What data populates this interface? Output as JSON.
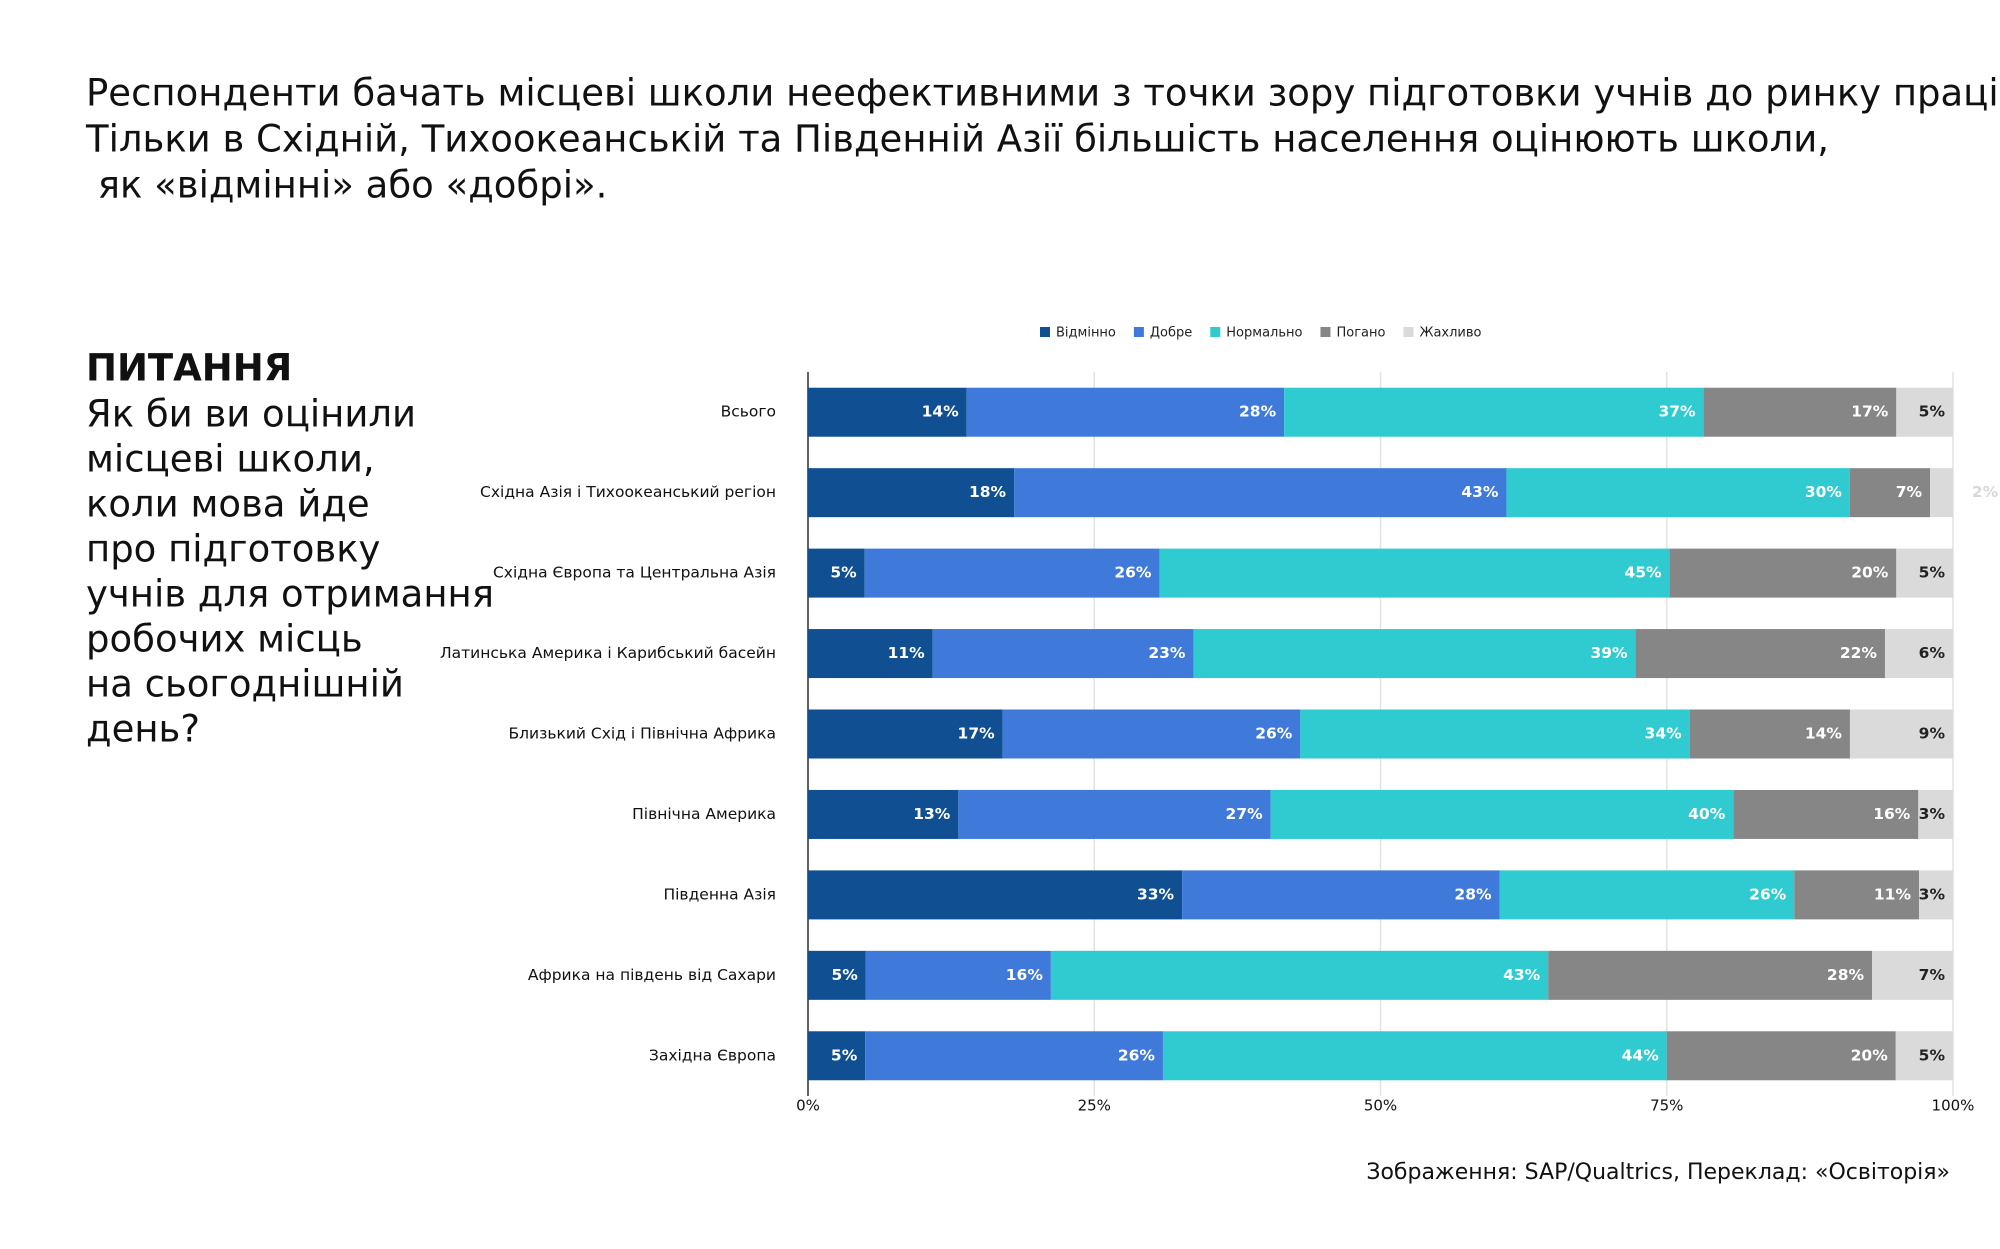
{
  "header": {
    "lines": [
      "Респонденти бачать місцеві школи неефективними з точки зору підготовки учнів до ринку праці.",
      "Тільки в Східній, Тихоокеанській та Південній Азії більшість населення оцінюють школи,",
      " як «відмінні» або «добрі»."
    ]
  },
  "question": {
    "heading": "ПИТАННЯ",
    "lines": [
      "Як би ви оцінили",
      "місцеві школи,",
      "коли мова йде",
      "про підготовку",
      "учнів для отримання",
      "робочих місць",
      "на сьогоднішній",
      "день?"
    ]
  },
  "source": "Зображення: SAP/Qualtrics, Переклад: «Освіторія»",
  "chart_data": {
    "type": "bar",
    "orientation": "horizontal",
    "stacked": "percent",
    "categories": [
      "Всього",
      "Східна Азія і Тихоокеанський регіон",
      "Східна Європа та Центральна Азія",
      "Латинська Америка і Карибський басейн",
      "Близький Схід і Північна Африка",
      "Північна Америка",
      "Південна Азія",
      "Африка на південь від Сахари",
      "Західна Європа"
    ],
    "series": [
      {
        "name": "Відмінно",
        "color": "#0f4f92",
        "values": [
          14,
          18,
          5,
          11,
          17,
          13,
          33,
          5,
          5
        ],
        "value_labels": [
          "14%",
          "18%",
          "5%",
          "11%",
          "17%",
          "13%",
          "33%",
          "5%",
          "5%"
        ]
      },
      {
        "name": "Добре",
        "color": "#3f79d9",
        "values": [
          28,
          43,
          26,
          23,
          26,
          27,
          28,
          16,
          26
        ],
        "value_labels": [
          "28%",
          "43%",
          "26%",
          "23%",
          "26%",
          "27%",
          "28%",
          "16%",
          "26%"
        ]
      },
      {
        "name": "Нормально",
        "color": "#2fcbd1",
        "values": [
          37,
          30,
          45,
          39,
          34,
          40,
          26,
          43,
          44
        ],
        "value_labels": [
          "37%",
          "30%",
          "45%",
          "39%",
          "34%",
          "40%",
          "26%",
          "43%",
          "44%"
        ]
      },
      {
        "name": "Погано",
        "color": "#868686",
        "values": [
          17,
          7,
          20,
          22,
          14,
          16,
          11,
          28,
          20
        ],
        "value_labels": [
          "17%",
          "7%",
          "20%",
          "22%",
          "14%",
          "16%",
          "11%",
          "28%",
          "20%"
        ]
      },
      {
        "name": "Жахливо",
        "color": "#dadada",
        "values": [
          5,
          2,
          5,
          6,
          9,
          3,
          3,
          7,
          5
        ],
        "value_labels": [
          "5%",
          "2%",
          "5%",
          "6%",
          "9%",
          "3%",
          "3%",
          "7%",
          "5%"
        ]
      }
    ],
    "xlim": [
      0,
      100
    ],
    "xticks": [
      {
        "value": 0,
        "label": "0%"
      },
      {
        "value": 25,
        "label": "25%"
      },
      {
        "value": 50,
        "label": "50%"
      },
      {
        "value": 75,
        "label": "75%"
      },
      {
        "value": 100,
        "label": "100%"
      }
    ],
    "grid": true,
    "legend": "top"
  }
}
